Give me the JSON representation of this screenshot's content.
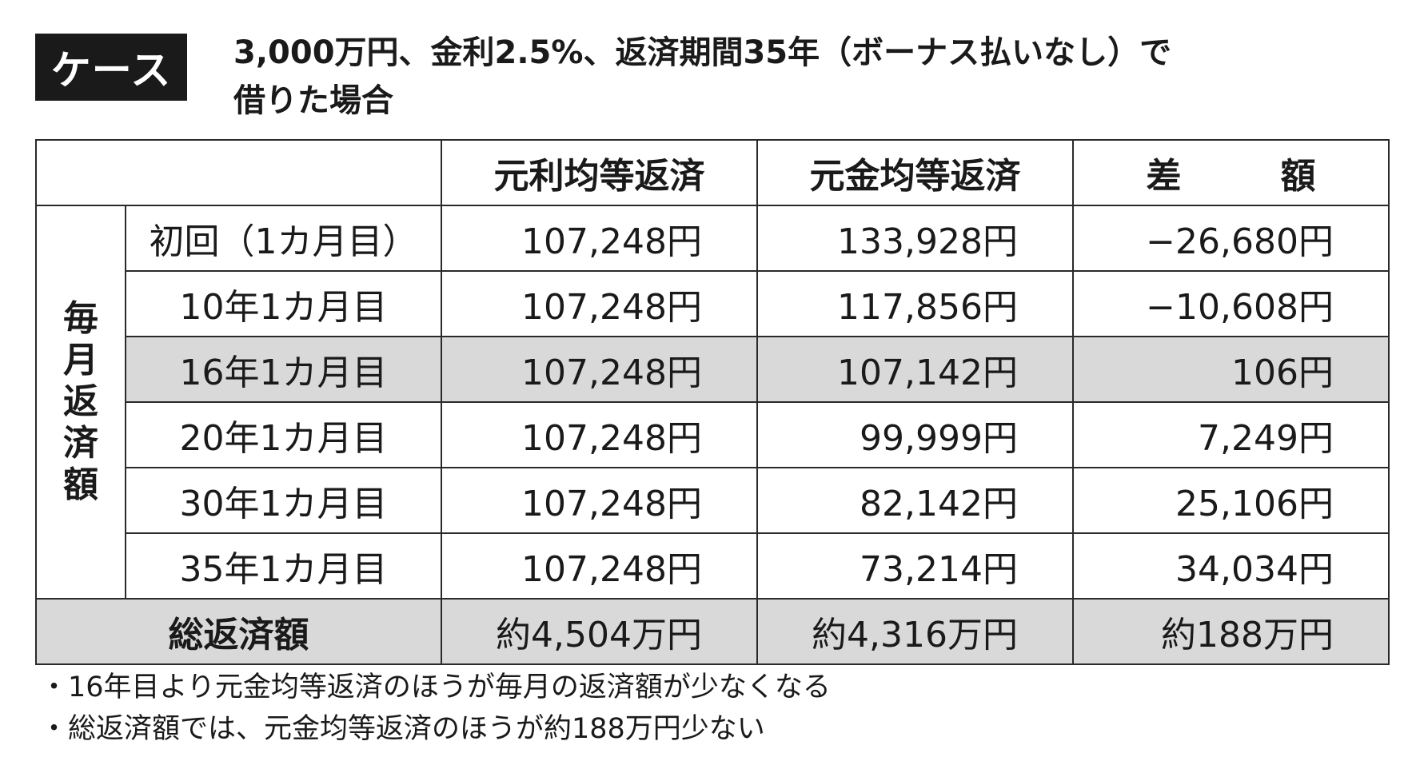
{
  "badge": "ケース",
  "title": {
    "line1": "3,000万円、金利2.5%、返済期間35年（ボーナス払いなし）で",
    "line2": "借りた場合"
  },
  "table": {
    "headers": {
      "blank": "",
      "col1": "元利均等返済",
      "col2": "元金均等返済",
      "col3": "差　額"
    },
    "group_label": [
      "毎",
      "月",
      "返",
      "済",
      "額"
    ],
    "rows": [
      {
        "label": "初回（1カ月目）",
        "c1": "107,248円",
        "c2": "133,928円",
        "c3": "−26,680円"
      },
      {
        "label": "10年1カ月目",
        "c1": "107,248円",
        "c2": "117,856円",
        "c3": "−10,608円"
      },
      {
        "label": "16年1カ月目",
        "c1": "107,248円",
        "c2": "107,142円",
        "c3": "106円"
      },
      {
        "label": "20年1カ月目",
        "c1": "107,248円",
        "c2": "99,999円",
        "c3": "7,249円"
      },
      {
        "label": "30年1カ月目",
        "c1": "107,248円",
        "c2": "82,142円",
        "c3": "25,106円"
      },
      {
        "label": "35年1カ月目",
        "c1": "107,248円",
        "c2": "73,214円",
        "c3": "34,034円"
      }
    ],
    "total": {
      "label": "総返済額",
      "c1": "約4,504万円",
      "c2": "約4,316万円",
      "c3": "約188万円"
    }
  },
  "notes": [
    "・16年目より元金均等返済のほうが毎月の返済額が少なくなる",
    "・総返済額では、元金均等返済のほうが約188万円少ない"
  ],
  "colors": {
    "shade": "#d9d9d9",
    "badge_bg": "#1a1a1a"
  }
}
